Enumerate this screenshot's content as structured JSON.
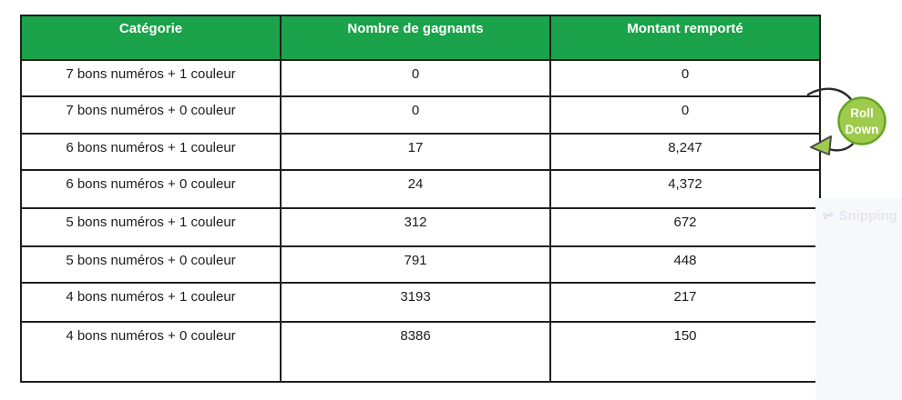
{
  "table": {
    "headers": [
      "Catégorie",
      "Nombre de gagnants",
      "Montant remporté"
    ],
    "rows": [
      {
        "category": "7 bons numéros + 1 couleur",
        "winners": "0",
        "amount": "0"
      },
      {
        "category": "7 bons numéros + 0 couleur",
        "winners": "0",
        "amount": "0"
      },
      {
        "category": "6 bons numéros + 1 couleur",
        "winners": "17",
        "amount": "8,247"
      },
      {
        "category": "6 bons numéros + 0 couleur",
        "winners": "24",
        "amount": "4,372"
      },
      {
        "category": "5 bons numéros + 1 couleur",
        "winners": "312",
        "amount": "672"
      },
      {
        "category": "5 bons numéros + 0 couleur",
        "winners": "791",
        "amount": "448"
      },
      {
        "category": "4 bons numéros + 1 couleur",
        "winners": "3193",
        "amount": "217"
      },
      {
        "category": "4 bons numéros + 0 couleur",
        "winners": "8386",
        "amount": "150"
      }
    ]
  },
  "badge": {
    "line1": "Roll",
    "line2": "Down"
  },
  "watermark": {
    "label": "Snipping T"
  },
  "colors": {
    "header_bg": "#1aa34a",
    "header_text": "#ffffff",
    "badge_fill": "#9fcb4d",
    "badge_border": "#67a427",
    "badge_text": "#ffffff",
    "arrow_stroke": "#2b2b2b",
    "grid_border": "#1f1f1f",
    "watermark_panel": "#f7f8fa",
    "watermark_text": "#e3e7ee"
  },
  "chart_data": {
    "type": "table",
    "title": "",
    "columns": [
      "Catégorie",
      "Nombre de gagnants",
      "Montant remporté"
    ],
    "rows": [
      [
        "7 bons numéros + 1 couleur",
        0,
        0
      ],
      [
        "7 bons numéros + 0 couleur",
        0,
        0
      ],
      [
        "6 bons numéros + 1 couleur",
        17,
        8247
      ],
      [
        "6 bons numéros + 0 couleur",
        24,
        4372
      ],
      [
        "5 bons numéros + 1 couleur",
        312,
        672
      ],
      [
        "5 bons numéros + 0 couleur",
        791,
        448
      ],
      [
        "4 bons numéros + 1 couleur",
        3193,
        217
      ],
      [
        "4 bons numéros + 0 couleur",
        8386,
        150
      ]
    ],
    "annotations": [
      "Roll Down arrow pointing from row '7 bons numéros + 0 couleur' area to row '6 bons numéros + 1 couleur'"
    ]
  }
}
